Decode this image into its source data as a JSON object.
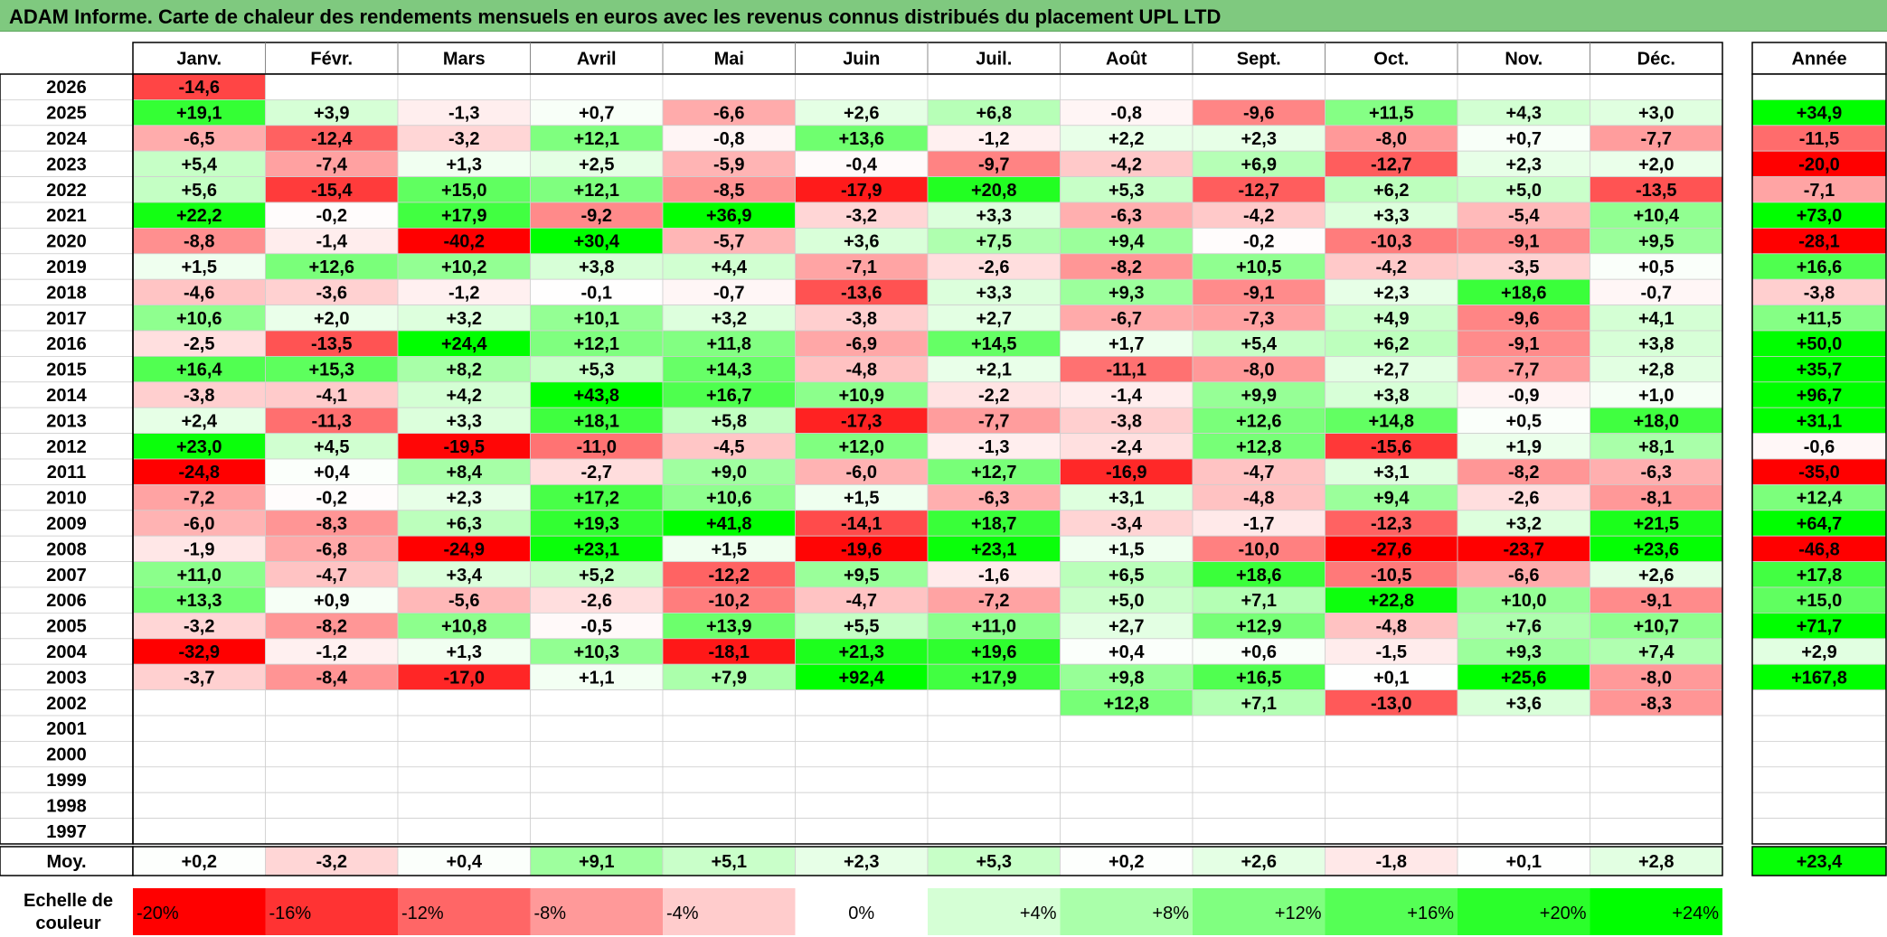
{
  "title": "ADAM Informe. Carte de chaleur des rendements mensuels en euros avec les revenus connus distribués du placement UPL LTD",
  "chart_data": {
    "type": "heatmap",
    "months": [
      "Janv.",
      "Févr.",
      "Mars",
      "Avril",
      "Mai",
      "Juin",
      "Juil.",
      "Août",
      "Sept.",
      "Oct.",
      "Nov.",
      "Déc."
    ],
    "year_header": "Année",
    "rows": [
      {
        "year": "2026",
        "values": [
          "-14,6",
          null,
          null,
          null,
          null,
          null,
          null,
          null,
          null,
          null,
          null,
          null
        ],
        "annual": null
      },
      {
        "year": "2025",
        "values": [
          "+19,1",
          "+3,9",
          "-1,3",
          "+0,7",
          "-6,6",
          "+2,6",
          "+6,8",
          "-0,8",
          "-9,6",
          "+11,5",
          "+4,3",
          "+3,0"
        ],
        "annual": "+34,9"
      },
      {
        "year": "2024",
        "values": [
          "-6,5",
          "-12,4",
          "-3,2",
          "+12,1",
          "-0,8",
          "+13,6",
          "-1,2",
          "+2,2",
          "+2,3",
          "-8,0",
          "+0,7",
          "-7,7"
        ],
        "annual": "-11,5"
      },
      {
        "year": "2023",
        "values": [
          "+5,4",
          "-7,4",
          "+1,3",
          "+2,5",
          "-5,9",
          "-0,4",
          "-9,7",
          "-4,2",
          "+6,9",
          "-12,7",
          "+2,3",
          "+2,0"
        ],
        "annual": "-20,0"
      },
      {
        "year": "2022",
        "values": [
          "+5,6",
          "-15,4",
          "+15,0",
          "+12,1",
          "-8,5",
          "-17,9",
          "+20,8",
          "+5,3",
          "-12,7",
          "+6,2",
          "+5,0",
          "-13,5"
        ],
        "annual": "-7,1"
      },
      {
        "year": "2021",
        "values": [
          "+22,2",
          "-0,2",
          "+17,9",
          "-9,2",
          "+36,9",
          "-3,2",
          "+3,3",
          "-6,3",
          "-4,2",
          "+3,3",
          "-5,4",
          "+10,4"
        ],
        "annual": "+73,0"
      },
      {
        "year": "2020",
        "values": [
          "-8,8",
          "-1,4",
          "-40,2",
          "+30,4",
          "-5,7",
          "+3,6",
          "+7,5",
          "+9,4",
          "-0,2",
          "-10,3",
          "-9,1",
          "+9,5"
        ],
        "annual": "-28,1"
      },
      {
        "year": "2019",
        "values": [
          "+1,5",
          "+12,6",
          "+10,2",
          "+3,8",
          "+4,4",
          "-7,1",
          "-2,6",
          "-8,2",
          "+10,5",
          "-4,2",
          "-3,5",
          "+0,5"
        ],
        "annual": "+16,6"
      },
      {
        "year": "2018",
        "values": [
          "-4,6",
          "-3,6",
          "-1,2",
          "-0,1",
          "-0,7",
          "-13,6",
          "+3,3",
          "+9,3",
          "-9,1",
          "+2,3",
          "+18,6",
          "-0,7"
        ],
        "annual": "-3,8"
      },
      {
        "year": "2017",
        "values": [
          "+10,6",
          "+2,0",
          "+3,2",
          "+10,1",
          "+3,2",
          "-3,8",
          "+2,7",
          "-6,7",
          "-7,3",
          "+4,9",
          "-9,6",
          "+4,1"
        ],
        "annual": "+11,5"
      },
      {
        "year": "2016",
        "values": [
          "-2,5",
          "-13,5",
          "+24,4",
          "+12,1",
          "+11,8",
          "-6,9",
          "+14,5",
          "+1,7",
          "+5,4",
          "+6,2",
          "-9,1",
          "+3,8"
        ],
        "annual": "+50,0"
      },
      {
        "year": "2015",
        "values": [
          "+16,4",
          "+15,3",
          "+8,2",
          "+5,3",
          "+14,3",
          "-4,8",
          "+2,1",
          "-11,1",
          "-8,0",
          "+2,7",
          "-7,7",
          "+2,8"
        ],
        "annual": "+35,7"
      },
      {
        "year": "2014",
        "values": [
          "-3,8",
          "-4,1",
          "+4,2",
          "+43,8",
          "+16,7",
          "+10,9",
          "-2,2",
          "-1,4",
          "+9,9",
          "+3,8",
          "-0,9",
          "+1,0"
        ],
        "annual": "+96,7"
      },
      {
        "year": "2013",
        "values": [
          "+2,4",
          "-11,3",
          "+3,3",
          "+18,1",
          "+5,8",
          "-17,3",
          "-7,7",
          "-3,8",
          "+12,6",
          "+14,8",
          "+0,5",
          "+18,0"
        ],
        "annual": "+31,1"
      },
      {
        "year": "2012",
        "values": [
          "+23,0",
          "+4,5",
          "-19,5",
          "-11,0",
          "-4,5",
          "+12,0",
          "-1,3",
          "-2,4",
          "+12,8",
          "-15,6",
          "+1,9",
          "+8,1"
        ],
        "annual": "-0,6"
      },
      {
        "year": "2011",
        "values": [
          "-24,8",
          "+0,4",
          "+8,4",
          "-2,7",
          "+9,0",
          "-6,0",
          "+12,7",
          "-16,9",
          "-4,7",
          "+3,1",
          "-8,2",
          "-6,3"
        ],
        "annual": "-35,0"
      },
      {
        "year": "2010",
        "values": [
          "-7,2",
          "-0,2",
          "+2,3",
          "+17,2",
          "+10,6",
          "+1,5",
          "-6,3",
          "+3,1",
          "-4,8",
          "+9,4",
          "-2,6",
          "-8,1"
        ],
        "annual": "+12,4"
      },
      {
        "year": "2009",
        "values": [
          "-6,0",
          "-8,3",
          "+6,3",
          "+19,3",
          "+41,8",
          "-14,1",
          "+18,7",
          "-3,4",
          "-1,7",
          "-12,3",
          "+3,2",
          "+21,5"
        ],
        "annual": "+64,7"
      },
      {
        "year": "2008",
        "values": [
          "-1,9",
          "-6,8",
          "-24,9",
          "+23,1",
          "+1,5",
          "-19,6",
          "+23,1",
          "+1,5",
          "-10,0",
          "-27,6",
          "-23,7",
          "+23,6"
        ],
        "annual": "-46,8"
      },
      {
        "year": "2007",
        "values": [
          "+11,0",
          "-4,7",
          "+3,4",
          "+5,2",
          "-12,2",
          "+9,5",
          "-1,6",
          "+6,5",
          "+18,6",
          "-10,5",
          "-6,6",
          "+2,6"
        ],
        "annual": "+17,8"
      },
      {
        "year": "2006",
        "values": [
          "+13,3",
          "+0,9",
          "-5,6",
          "-2,6",
          "-10,2",
          "-4,7",
          "-7,2",
          "+5,0",
          "+7,1",
          "+22,8",
          "+10,0",
          "-9,1"
        ],
        "annual": "+15,0"
      },
      {
        "year": "2005",
        "values": [
          "-3,2",
          "-8,2",
          "+10,8",
          "-0,5",
          "+13,9",
          "+5,5",
          "+11,0",
          "+2,7",
          "+12,9",
          "-4,8",
          "+7,6",
          "+10,7"
        ],
        "annual": "+71,7"
      },
      {
        "year": "2004",
        "values": [
          "-32,9",
          "-1,2",
          "+1,3",
          "+10,3",
          "-18,1",
          "+21,3",
          "+19,6",
          "+0,4",
          "+0,6",
          "-1,5",
          "+9,3",
          "+7,4"
        ],
        "annual": "+2,9"
      },
      {
        "year": "2003",
        "values": [
          "-3,7",
          "-8,4",
          "-17,0",
          "+1,1",
          "+7,9",
          "+92,4",
          "+17,9",
          "+9,8",
          "+16,5",
          "+0,1",
          "+25,6",
          "-8,0"
        ],
        "annual": "+167,8"
      },
      {
        "year": "2002",
        "values": [
          null,
          null,
          null,
          null,
          null,
          null,
          null,
          "+12,8",
          "+7,1",
          "-13,0",
          "+3,6",
          "-8,3"
        ],
        "annual": null
      },
      {
        "year": "2001",
        "values": [
          null,
          null,
          null,
          null,
          null,
          null,
          null,
          null,
          null,
          null,
          null,
          null
        ],
        "annual": null
      },
      {
        "year": "2000",
        "values": [
          null,
          null,
          null,
          null,
          null,
          null,
          null,
          null,
          null,
          null,
          null,
          null
        ],
        "annual": null
      },
      {
        "year": "1999",
        "values": [
          null,
          null,
          null,
          null,
          null,
          null,
          null,
          null,
          null,
          null,
          null,
          null
        ],
        "annual": null
      },
      {
        "year": "1998",
        "values": [
          null,
          null,
          null,
          null,
          null,
          null,
          null,
          null,
          null,
          null,
          null,
          null
        ],
        "annual": null
      },
      {
        "year": "1997",
        "values": [
          null,
          null,
          null,
          null,
          null,
          null,
          null,
          null,
          null,
          null,
          null,
          null
        ],
        "annual": null
      }
    ],
    "average": {
      "label": "Moy.",
      "values": [
        "+0,2",
        "-3,2",
        "+0,4",
        "+9,1",
        "+5,1",
        "+2,3",
        "+5,3",
        "+0,2",
        "+2,6",
        "-1,8",
        "+0,1",
        "+2,8"
      ],
      "annual": "+23,4"
    },
    "color_scale": {
      "label": "Echelle de couleur",
      "steps": [
        {
          "label": "-20%",
          "value": -20,
          "color": "#ff0000"
        },
        {
          "label": "-16%",
          "value": -16,
          "color": "#ff3333"
        },
        {
          "label": "-12%",
          "value": -12,
          "color": "#ff6666"
        },
        {
          "label": "-8%",
          "value": -8,
          "color": "#ff9999"
        },
        {
          "label": "-4%",
          "value": -4,
          "color": "#ffcccc"
        },
        {
          "label": "0%",
          "value": 0,
          "color": "#ffffff"
        },
        {
          "label": "+4%",
          "value": 4,
          "color": "#d5ffd5"
        },
        {
          "label": "+8%",
          "value": 8,
          "color": "#aaffaa"
        },
        {
          "label": "+12%",
          "value": 12,
          "color": "#80ff80"
        },
        {
          "label": "+16%",
          "value": 16,
          "color": "#55ff55"
        },
        {
          "label": "+20%",
          "value": 20,
          "color": "#2bff2b"
        },
        {
          "label": "+24%",
          "value": 24,
          "color": "#00ff00"
        }
      ]
    }
  }
}
